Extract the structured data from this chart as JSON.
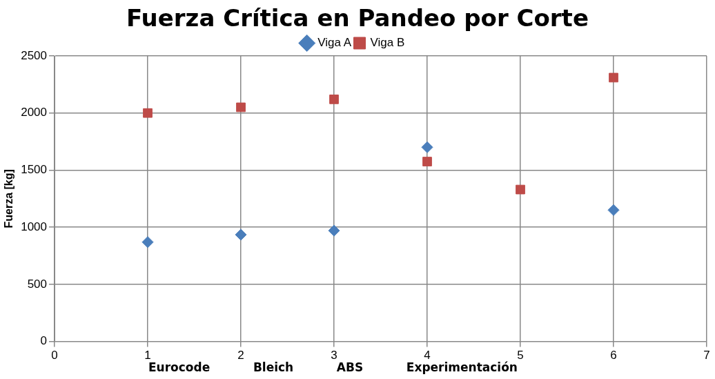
{
  "chart_data": {
    "type": "scatter",
    "title": "Fuerza Crítica en Pandeo por Corte",
    "ylabel": "Fuerza [kg]",
    "series": [
      {
        "name": "Viga A",
        "color": "#4a7ebb",
        "marker": "diamond",
        "x": [
          1,
          2,
          3,
          4,
          6
        ],
        "values": [
          870,
          935,
          970,
          1700,
          1150
        ]
      },
      {
        "name": "Viga B",
        "color": "#be4b48",
        "marker": "square",
        "x": [
          1,
          2,
          3,
          4,
          5,
          6
        ],
        "values": [
          2000,
          2050,
          2120,
          1575,
          1330,
          2310
        ]
      }
    ],
    "xlim": [
      0,
      7
    ],
    "xticks": [
      0,
      1,
      2,
      3,
      4,
      5,
      6,
      7
    ],
    "ylim": [
      0,
      2500
    ],
    "yticks": [
      0,
      500,
      1000,
      1500,
      2000,
      2500
    ],
    "grid": true,
    "legend": "top",
    "annotations": [
      "Eurocode",
      "Bleich",
      "ABS",
      "Experimentación"
    ]
  }
}
